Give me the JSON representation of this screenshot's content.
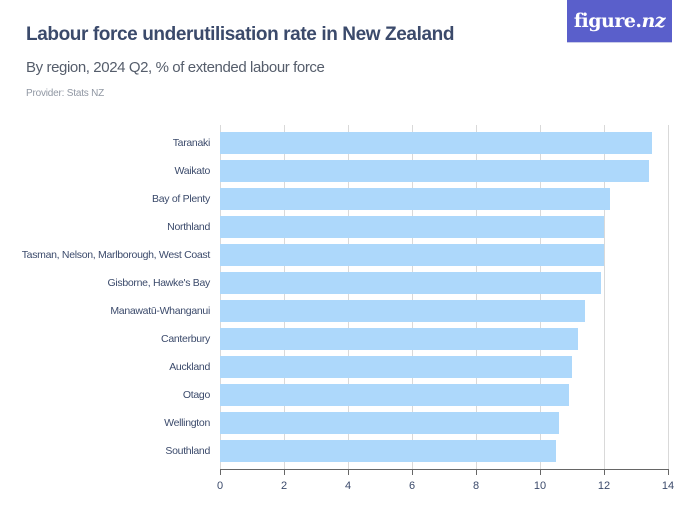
{
  "header": {
    "title": "Labour force underutilisation rate in New Zealand",
    "subtitle": "By region, 2024 Q2, % of extended labour force",
    "provider": "Provider: Stats NZ"
  },
  "logo": {
    "text_main": "figure.",
    "text_nz": "nz",
    "bg_color": "#5a5fcb"
  },
  "colors": {
    "bar": "#add8fb",
    "text": "#3b4a6b",
    "grid": "#d9d9d9",
    "axis": "#666666"
  },
  "chart_data": {
    "type": "bar",
    "orientation": "horizontal",
    "title": "Labour force underutilisation rate in New Zealand",
    "subtitle": "By region, 2024 Q2, % of extended labour force",
    "xlabel": "",
    "ylabel": "",
    "categories": [
      "Taranaki",
      "Waikato",
      "Bay of Plenty",
      "Northland",
      "Tasman, Nelson, Marlborough, West Coast",
      "Gisborne, Hawke's Bay",
      "Manawatū-Whanganui",
      "Canterbury",
      "Auckland",
      "Otago",
      "Wellington",
      "Southland"
    ],
    "values": [
      13.5,
      13.4,
      12.2,
      12.0,
      12.0,
      11.9,
      11.4,
      11.2,
      11.0,
      10.9,
      10.6,
      10.5
    ],
    "xlim": [
      0,
      14
    ],
    "xticks": [
      "0",
      "2",
      "4",
      "6",
      "8",
      "10",
      "12",
      "14"
    ],
    "grid": true,
    "legend": null
  }
}
